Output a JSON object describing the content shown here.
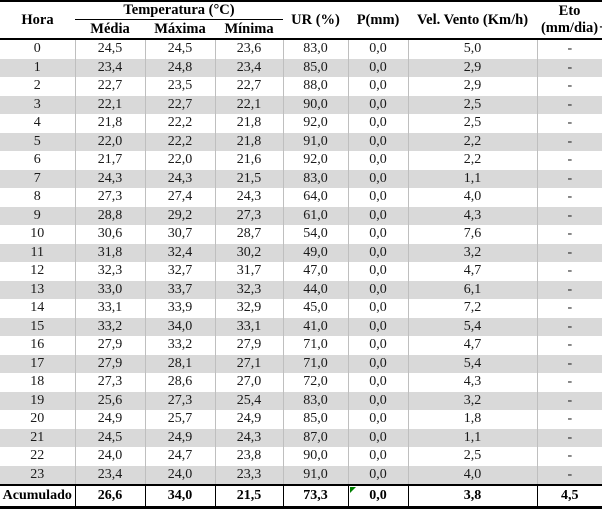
{
  "chart_data": {
    "type": "table",
    "header": {
      "hora": "Hora",
      "temp_group": "Temperatura (°C)",
      "temp_sub": [
        "Média",
        "Máxima",
        "Mínima"
      ],
      "ur": "UR (%)",
      "p": "P(mm)",
      "vento": "Vel. Vento (Km/h)",
      "eto": "Eto (mm/dia)"
    },
    "rows": [
      [
        "0",
        "24,5",
        "24,5",
        "23,6",
        "83,0",
        "0,0",
        "5,0",
        "-"
      ],
      [
        "1",
        "23,4",
        "24,8",
        "23,4",
        "85,0",
        "0,0",
        "2,9",
        "-"
      ],
      [
        "2",
        "22,7",
        "23,5",
        "22,7",
        "88,0",
        "0,0",
        "2,9",
        "-"
      ],
      [
        "3",
        "22,1",
        "22,7",
        "22,1",
        "90,0",
        "0,0",
        "2,5",
        "-"
      ],
      [
        "4",
        "21,8",
        "22,2",
        "21,8",
        "92,0",
        "0,0",
        "2,5",
        "-"
      ],
      [
        "5",
        "22,0",
        "22,2",
        "21,8",
        "91,0",
        "0,0",
        "2,2",
        "-"
      ],
      [
        "6",
        "21,7",
        "22,0",
        "21,6",
        "92,0",
        "0,0",
        "2,2",
        "-"
      ],
      [
        "7",
        "24,3",
        "24,3",
        "21,5",
        "83,0",
        "0,0",
        "1,1",
        "-"
      ],
      [
        "8",
        "27,3",
        "27,4",
        "24,3",
        "64,0",
        "0,0",
        "4,0",
        "-"
      ],
      [
        "9",
        "28,8",
        "29,2",
        "27,3",
        "61,0",
        "0,0",
        "4,3",
        "-"
      ],
      [
        "10",
        "30,6",
        "30,7",
        "28,7",
        "54,0",
        "0,0",
        "7,6",
        "-"
      ],
      [
        "11",
        "31,8",
        "32,4",
        "30,2",
        "49,0",
        "0,0",
        "3,2",
        "-"
      ],
      [
        "12",
        "32,3",
        "32,7",
        "31,7",
        "47,0",
        "0,0",
        "4,7",
        "-"
      ],
      [
        "13",
        "33,0",
        "33,7",
        "32,3",
        "44,0",
        "0,0",
        "6,1",
        "-"
      ],
      [
        "14",
        "33,1",
        "33,9",
        "32,9",
        "45,0",
        "0,0",
        "7,2",
        "-"
      ],
      [
        "15",
        "33,2",
        "34,0",
        "33,1",
        "41,0",
        "0,0",
        "5,4",
        "-"
      ],
      [
        "16",
        "27,9",
        "33,2",
        "27,9",
        "71,0",
        "0,0",
        "4,7",
        "-"
      ],
      [
        "17",
        "27,9",
        "28,1",
        "27,1",
        "71,0",
        "0,0",
        "5,4",
        "-"
      ],
      [
        "18",
        "27,3",
        "28,6",
        "27,0",
        "72,0",
        "0,0",
        "4,3",
        "-"
      ],
      [
        "19",
        "25,6",
        "27,3",
        "25,4",
        "83,0",
        "0,0",
        "3,2",
        "-"
      ],
      [
        "20",
        "24,9",
        "25,7",
        "24,9",
        "85,0",
        "0,0",
        "1,8",
        "-"
      ],
      [
        "21",
        "24,5",
        "24,9",
        "24,3",
        "87,0",
        "0,0",
        "1,1",
        "-"
      ],
      [
        "22",
        "24,0",
        "24,7",
        "23,8",
        "90,0",
        "0,0",
        "2,5",
        "-"
      ],
      [
        "23",
        "23,4",
        "24,0",
        "23,3",
        "91,0",
        "0,0",
        "4,0",
        "-"
      ]
    ],
    "footer": [
      "Acumulado",
      "26,6",
      "34,0",
      "21,5",
      "73,3",
      "0,0",
      "3,8",
      "4,5"
    ],
    "footer_flag_column": 5,
    "layout": {
      "alt_rows_shaded": "odd hours",
      "legend_position": "none",
      "grid": "vertical separators between columns"
    }
  },
  "misc": {
    "edge_dash": "-"
  },
  "colors": {
    "row_alt": "#d9d9d9",
    "grid_line": "#bfbfbf",
    "border": "#000000",
    "flag_green": "#008000"
  }
}
